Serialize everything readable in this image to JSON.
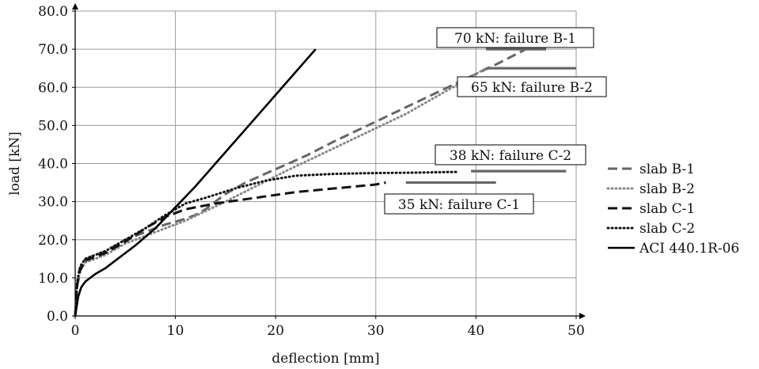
{
  "chart_data": {
    "type": "line",
    "xlabel": "deflection [mm]",
    "ylabel": "load [kN]",
    "xlim": [
      0,
      50
    ],
    "ylim": [
      0,
      80
    ],
    "x_ticks": [
      "0",
      "10",
      "20",
      "30",
      "40",
      "50"
    ],
    "y_ticks": [
      "0.0",
      "10.0",
      "20.0",
      "30.0",
      "40.0",
      "50.0",
      "60.0",
      "70.0",
      "80.0"
    ],
    "grid": true,
    "legend_position": "right",
    "series": [
      {
        "name": "slab B-1",
        "style": "dashed",
        "color": "#666666",
        "x": [
          0,
          0.2,
          0.4,
          0.8,
          1.5,
          3,
          5,
          7,
          9,
          11,
          12,
          13,
          14,
          15,
          17,
          20,
          23,
          26,
          30,
          34,
          38,
          42,
          45
        ],
        "y": [
          0,
          8,
          12,
          14.5,
          15.5,
          17,
          20,
          22,
          24,
          25.5,
          26.5,
          28,
          30,
          32,
          35,
          38.5,
          42,
          46,
          51,
          56,
          61,
          66,
          70
        ]
      },
      {
        "name": "slab B-2",
        "style": "dotted",
        "color": "#888888",
        "x": [
          0,
          0.2,
          0.5,
          1,
          2,
          3,
          5,
          7,
          9,
          11,
          13,
          15,
          18,
          21,
          25,
          29,
          33,
          37,
          41
        ],
        "y": [
          0,
          8,
          12,
          14,
          15,
          16,
          19,
          21,
          23,
          25,
          27.5,
          30,
          34,
          38,
          43,
          48,
          53,
          59,
          65
        ]
      },
      {
        "name": "slab C-1",
        "style": "dashed",
        "color": "#111111",
        "x": [
          0,
          0.2,
          0.5,
          1,
          2,
          3,
          5,
          7,
          9,
          11,
          14,
          18,
          22,
          26,
          30,
          31
        ],
        "y": [
          0,
          8,
          12,
          14.5,
          15.5,
          16.5,
          19.5,
          23,
          26,
          28,
          29.5,
          31,
          32.5,
          33.5,
          34.5,
          35
        ]
      },
      {
        "name": "slab C-2",
        "style": "dotted",
        "color": "#111111",
        "x": [
          0,
          0.2,
          0.5,
          1,
          2,
          3,
          5,
          7,
          9,
          11,
          13,
          16,
          19,
          22,
          26,
          30,
          34,
          38
        ],
        "y": [
          0,
          9,
          13,
          15,
          16,
          17,
          20,
          23,
          26.5,
          29.5,
          31,
          33.5,
          35.5,
          36.8,
          37.3,
          37.5,
          37.6,
          37.8
        ]
      },
      {
        "name": "ACI 440.1R-06",
        "style": "solid",
        "color": "#000000",
        "x": [
          0,
          0.3,
          0.6,
          1,
          1.5,
          2,
          3,
          4,
          6,
          8,
          10,
          12,
          14,
          16,
          18,
          20,
          22,
          24
        ],
        "y": [
          0,
          5,
          7.5,
          9,
          10,
          11,
          12.5,
          14.5,
          18.5,
          23,
          28.5,
          34,
          40,
          46,
          52,
          58,
          64,
          70
        ]
      }
    ],
    "failure_levels": [
      {
        "label": "70 kN: failure B-1",
        "y": 70,
        "x_start": 41,
        "x_end": 47,
        "color": "#666666"
      },
      {
        "label": "65 kN: failure B-2",
        "y": 65,
        "x_start": 41,
        "x_end": 50,
        "color": "#666666"
      },
      {
        "label": "38 kN: failure C-2",
        "y": 38,
        "x_start": 39.5,
        "x_end": 49,
        "color": "#666666"
      },
      {
        "label": "35 kN: failure C-1",
        "y": 35,
        "x_start": 33,
        "x_end": 42,
        "color": "#666666"
      }
    ]
  }
}
